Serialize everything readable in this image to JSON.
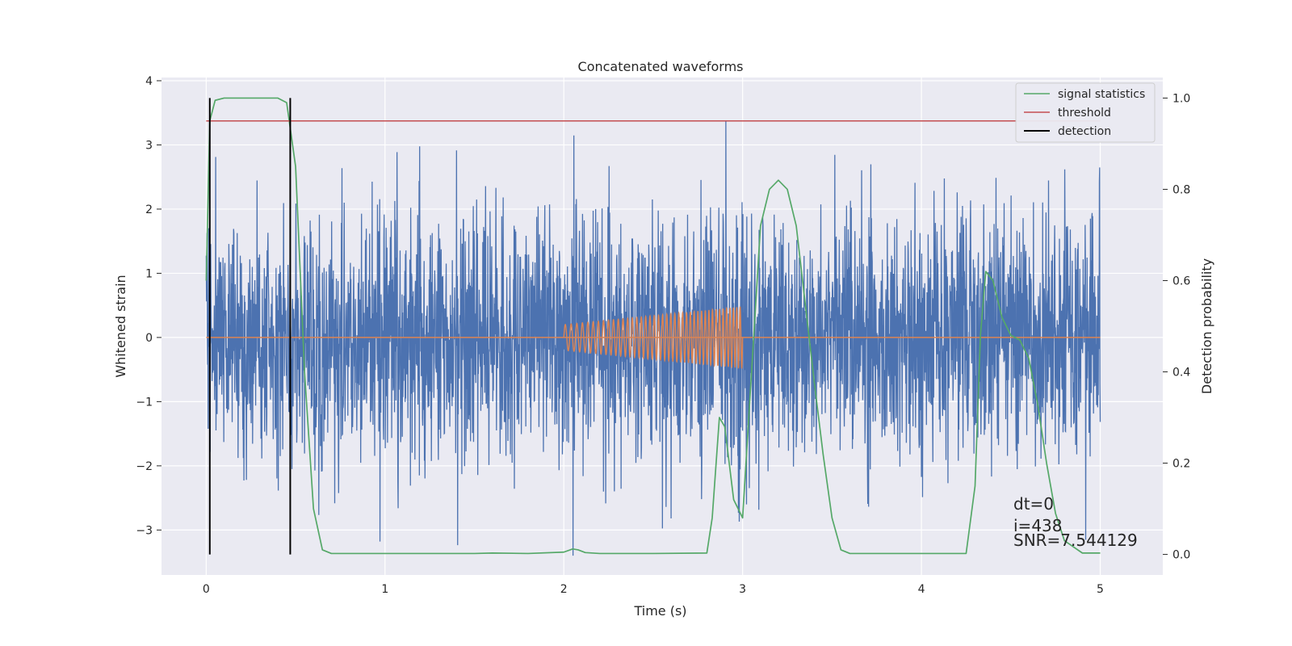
{
  "chart_data": {
    "type": "line",
    "title": "Concatenated waveforms",
    "xlabel": "Time (s)",
    "ylabel": "Whitened strain",
    "y2label": "Detection probability",
    "xlim": [
      -0.25,
      5.35
    ],
    "ylim": [
      -3.7,
      4.05
    ],
    "y2lim": [
      -0.045,
      1.045
    ],
    "xticks": [
      "0",
      "1",
      "2",
      "3",
      "4",
      "5"
    ],
    "xtick_values": [
      0,
      1,
      2,
      3,
      4,
      5
    ],
    "yticks": [
      "−3",
      "−2",
      "−1",
      "0",
      "1",
      "2",
      "3",
      "4"
    ],
    "ytick_values": [
      -3,
      -2,
      -1,
      0,
      1,
      2,
      3,
      4
    ],
    "y2ticks": [
      "0.0",
      "0.2",
      "0.4",
      "0.6",
      "0.8",
      "1.0"
    ],
    "y2tick_values": [
      0.0,
      0.2,
      0.4,
      0.6,
      0.8,
      1.0
    ],
    "grid": true,
    "legend_position": "top-right",
    "legend": [
      {
        "label": "signal statistics",
        "color": "#55a868"
      },
      {
        "label": "threshold",
        "color": "#c44e52"
      },
      {
        "label": "detection",
        "color": "#000000"
      }
    ],
    "colors": {
      "noise": "#4c72b0",
      "template": "#dd8452",
      "signal_statistics": "#55a868",
      "threshold": "#c44e52",
      "detection": "#000000",
      "background": "#eaeaf2",
      "grid": "#ffffff"
    },
    "series": [
      {
        "kind": "whitened-noise",
        "axis": "left",
        "x_range": [
          0,
          5
        ],
        "envelope": {
          "typical_abs": 0.95,
          "max": 3.7,
          "min": -3.4
        }
      },
      {
        "kind": "injected-chirp",
        "axis": "left",
        "x_range": [
          2,
          3
        ],
        "amplitude_start": 0.2,
        "amplitude_end": 0.48,
        "baseline_x_range": [
          0,
          5
        ],
        "baseline_value": 0
      },
      {
        "name": "signal statistics",
        "axis": "right",
        "x": [
          0.0,
          0.02,
          0.05,
          0.1,
          0.2,
          0.3,
          0.4,
          0.45,
          0.5,
          0.55,
          0.6,
          0.65,
          0.7,
          0.8,
          1.0,
          1.5,
          1.6,
          1.8,
          2.0,
          2.05,
          2.08,
          2.12,
          2.2,
          2.5,
          2.8,
          2.83,
          2.87,
          2.9,
          2.95,
          3.0,
          3.05,
          3.1,
          3.15,
          3.2,
          3.25,
          3.3,
          3.35,
          3.4,
          3.45,
          3.5,
          3.55,
          3.6,
          4.0,
          4.25,
          4.3,
          4.33,
          4.36,
          4.4,
          4.45,
          4.5,
          4.55,
          4.6,
          4.65,
          4.7,
          4.75,
          4.8,
          4.9,
          5.0
        ],
        "y": [
          0.6,
          0.95,
          0.995,
          1.0,
          1.0,
          1.0,
          1.0,
          0.99,
          0.85,
          0.4,
          0.1,
          0.01,
          0.002,
          0.002,
          0.002,
          0.002,
          0.003,
          0.002,
          0.005,
          0.012,
          0.01,
          0.004,
          0.002,
          0.002,
          0.003,
          0.08,
          0.3,
          0.28,
          0.12,
          0.08,
          0.4,
          0.72,
          0.8,
          0.82,
          0.8,
          0.72,
          0.55,
          0.38,
          0.22,
          0.08,
          0.01,
          0.002,
          0.002,
          0.002,
          0.15,
          0.48,
          0.62,
          0.6,
          0.52,
          0.48,
          0.47,
          0.43,
          0.33,
          0.2,
          0.09,
          0.03,
          0.003,
          0.003
        ]
      },
      {
        "name": "threshold",
        "axis": "right",
        "x": [
          0,
          5
        ],
        "y": [
          0.95,
          0.95
        ]
      },
      {
        "name": "detection",
        "axis": "right",
        "x": [
          0.02,
          0.47
        ],
        "y_range": [
          0.0,
          1.0
        ]
      }
    ],
    "annotations": {
      "dt": "dt=0",
      "i": "i=438",
      "snr": "SNR=7.544129"
    }
  }
}
